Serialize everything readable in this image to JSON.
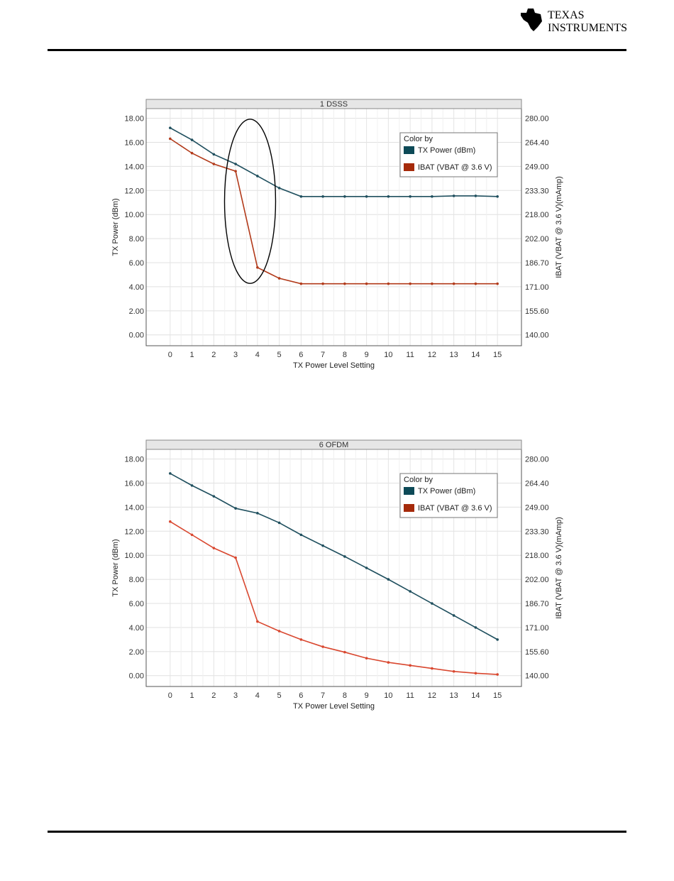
{
  "header": {
    "logo_line1": "TEXAS",
    "logo_line2": "INSTRUMENTS"
  },
  "colors": {
    "tx_power": "#1f4f5e",
    "ibat_top": "#b23a1a",
    "ibat_bottom": "#d9472f",
    "legend_tx": "#0d4a57",
    "legend_ibat": "#a52a0a"
  },
  "chart_data": [
    {
      "type": "line",
      "title": "1 DSSS",
      "xlabel": "TX Power Level Setting",
      "ylabel": "TX Power (dBm)",
      "y2label": "IBAT (VBAT @ 3.6 V)(mAmp)",
      "x": [
        0,
        1,
        2,
        3,
        4,
        5,
        6,
        7,
        8,
        9,
        10,
        11,
        12,
        13,
        14,
        15
      ],
      "ylim": [
        -0.9,
        18.8
      ],
      "yticks": [
        "0.00",
        "2.00",
        "4.00",
        "6.00",
        "8.00",
        "10.00",
        "12.00",
        "14.00",
        "16.00",
        "18.00"
      ],
      "y2ticks": [
        "140.00",
        "155.60",
        "171.00",
        "186.70",
        "202.00",
        "218.00",
        "233.30",
        "249.00",
        "264.40",
        "280.00"
      ],
      "legend_title": "Color by",
      "legend_position": "top-right",
      "grid": true,
      "annotation": "ellipse around TX power level 3-4",
      "series": [
        {
          "name": "TX Power (dBm)",
          "axis": "left",
          "values": [
            17.2,
            16.2,
            15.0,
            14.2,
            13.2,
            12.2,
            11.5,
            11.5,
            11.5,
            11.5,
            11.5,
            11.5,
            11.5,
            11.55,
            11.55,
            11.5
          ]
        },
        {
          "name": "IBAT (VBAT @ 3.6 V)",
          "axis": "left",
          "values": [
            16.3,
            15.1,
            14.2,
            13.6,
            5.6,
            4.7,
            4.25,
            4.25,
            4.25,
            4.25,
            4.25,
            4.25,
            4.25,
            4.25,
            4.25,
            4.25
          ]
        }
      ]
    },
    {
      "type": "line",
      "title": "6 OFDM",
      "xlabel": "TX Power Level Setting",
      "ylabel": "TX Power (dBm)",
      "y2label": "IBAT (VBAT @ 3.6 V)(mAmp)",
      "x": [
        0,
        1,
        2,
        3,
        4,
        5,
        6,
        7,
        8,
        9,
        10,
        11,
        12,
        13,
        14,
        15
      ],
      "ylim": [
        -0.9,
        18.8
      ],
      "yticks": [
        "0.00",
        "2.00",
        "4.00",
        "6.00",
        "8.00",
        "10.00",
        "12.00",
        "14.00",
        "16.00",
        "18.00"
      ],
      "y2ticks": [
        "140.00",
        "155.60",
        "171.00",
        "186.70",
        "202.00",
        "218.00",
        "233.30",
        "249.00",
        "264.40",
        "280.00"
      ],
      "legend_title": "Color by",
      "legend_position": "top-right",
      "grid": true,
      "series": [
        {
          "name": "TX Power (dBm)",
          "axis": "left",
          "values": [
            16.8,
            15.8,
            14.9,
            13.9,
            13.5,
            12.7,
            11.7,
            10.8,
            9.9,
            8.95,
            8.0,
            7.0,
            6.0,
            5.0,
            4.0,
            3.0
          ]
        },
        {
          "name": "IBAT (VBAT @ 3.6 V)",
          "axis": "left",
          "values": [
            12.8,
            11.7,
            10.6,
            9.8,
            4.5,
            3.7,
            3.0,
            2.4,
            1.95,
            1.45,
            1.1,
            0.85,
            0.6,
            0.35,
            0.2,
            0.1
          ]
        }
      ]
    }
  ]
}
